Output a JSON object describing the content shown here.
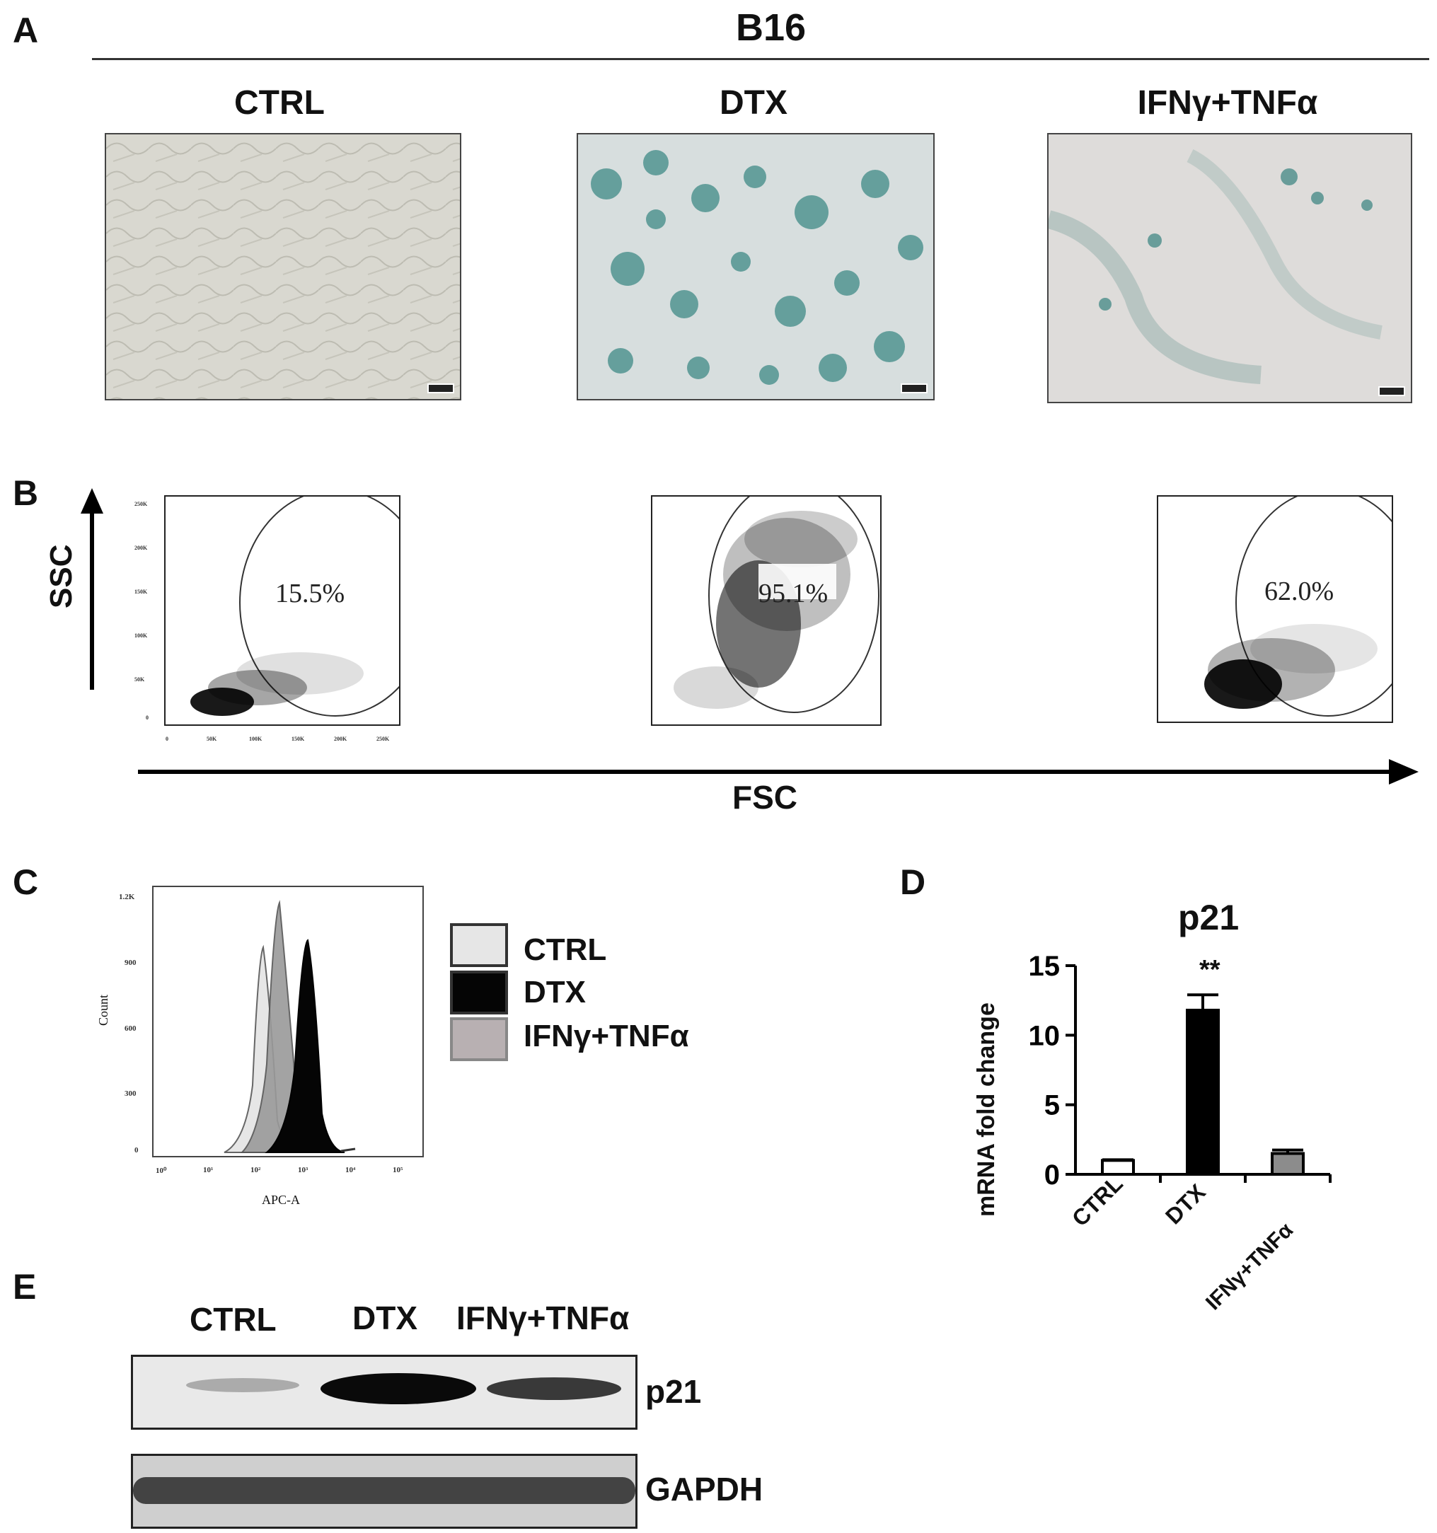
{
  "panel_labels": {
    "a": "A",
    "b": "B",
    "c": "C",
    "d": "D",
    "e": "E"
  },
  "panel_a": {
    "cell_line": "B16",
    "conditions": [
      "CTRL",
      "DTX",
      "IFNγ+TNFα"
    ]
  },
  "panel_b": {
    "y_axis": "SSC",
    "x_axis": "FSC",
    "percentages": [
      "15.5%",
      "95.1%",
      "62.0%"
    ],
    "y_ticks": [
      "250K",
      "200K",
      "150K",
      "100K",
      "50K",
      "0"
    ],
    "x_ticks": [
      "0",
      "50K",
      "100K",
      "150K",
      "200K",
      "250K"
    ]
  },
  "panel_c": {
    "y_label": "Count",
    "x_label": "APC-A",
    "y_ticks": [
      "1.2K",
      "900",
      "600",
      "300",
      "0"
    ],
    "x_ticks": [
      "10⁰",
      "10¹",
      "10²",
      "10³",
      "10⁴",
      "10⁵"
    ],
    "legend": [
      {
        "label": "CTRL",
        "color": "#e6e6e6"
      },
      {
        "label": "DTX",
        "color": "#050505"
      },
      {
        "label": "IFNγ+TNFα",
        "color": "#b8b0b2"
      }
    ]
  },
  "panel_d": {
    "significance": "**",
    "chart_data": {
      "type": "bar",
      "title": "p21",
      "ylabel": "mRNA fold change",
      "xlabel": "",
      "categories": [
        "CTRL",
        "DTX",
        "IFNγ+TNFα"
      ],
      "values": [
        1.0,
        11.8,
        1.5
      ],
      "errors": [
        0.05,
        1.1,
        0.25
      ],
      "colors": [
        "#ffffff",
        "#000000",
        "#8c8c8c"
      ],
      "ylim": [
        0,
        15
      ],
      "y_ticks": [
        "0",
        "5",
        "10",
        "15"
      ]
    }
  },
  "panel_e": {
    "lanes": [
      "CTRL",
      "DTX",
      "IFNγ+TNFα"
    ],
    "bands": [
      "p21",
      "GAPDH"
    ],
    "p21_relative_intensity": [
      0.2,
      1.0,
      0.65
    ]
  }
}
